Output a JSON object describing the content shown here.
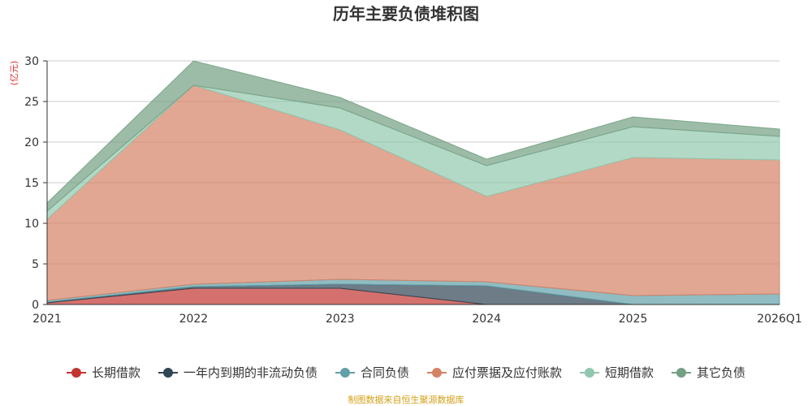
{
  "chart_data": {
    "type": "area",
    "stacked": true,
    "title": "历年主要负债堆积图",
    "unit": "(亿元)",
    "x": [
      "2021",
      "2022",
      "2023",
      "2024",
      "2025",
      "2026Q1"
    ],
    "ylim": [
      0,
      30
    ],
    "yticks": [
      0,
      5,
      10,
      15,
      20,
      25,
      30
    ],
    "grid": true,
    "legend_position": "bottom",
    "series": [
      {
        "name": "长期借款",
        "color": "#c23531",
        "values": [
          0.2,
          2.0,
          2.0,
          0.0,
          0.0,
          0.0
        ]
      },
      {
        "name": "一年内到期的非流动负债",
        "color": "#2f4554",
        "values": [
          0.1,
          0.2,
          0.5,
          2.3,
          0.0,
          0.0
        ]
      },
      {
        "name": "合同负债",
        "color": "#61a0a8",
        "values": [
          0.2,
          0.3,
          0.6,
          0.5,
          1.1,
          1.3
        ]
      },
      {
        "name": "应付票据及应付账款",
        "color": "#d48265",
        "values": [
          10.0,
          24.5,
          18.4,
          10.5,
          17.0,
          16.5
        ]
      },
      {
        "name": "短期借款",
        "color": "#91c7ae",
        "values": [
          1.0,
          0.0,
          2.7,
          3.8,
          3.8,
          2.9
        ]
      },
      {
        "name": "其它负债",
        "color": "#749f83",
        "values": [
          1.0,
          3.0,
          1.3,
          0.8,
          1.2,
          0.9
        ]
      }
    ]
  },
  "source_note": "制图数据来自恒生聚源数据库"
}
